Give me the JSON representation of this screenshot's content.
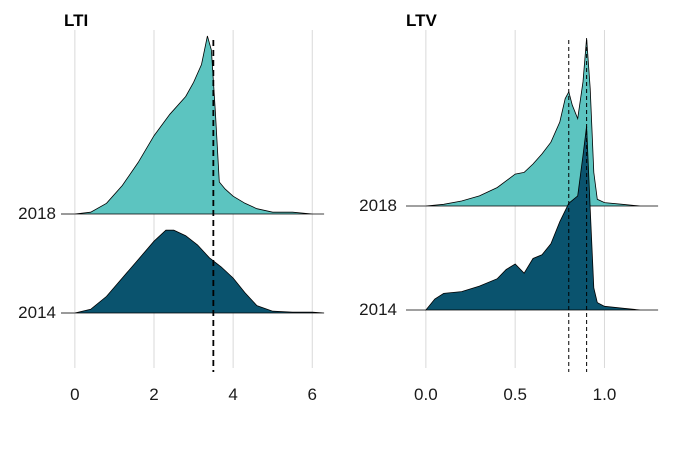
{
  "chart_data": [
    {
      "type": "ridgeline",
      "title": "LTI",
      "xlabel": "",
      "ylabel": "",
      "xlim": [
        -0.3,
        6.6
      ],
      "x_ticks": [
        "0",
        "2",
        "4",
        "6"
      ],
      "x_tick_values": [
        0,
        2,
        4,
        6
      ],
      "grid": true,
      "reference_lines": [
        {
          "x": 3.5,
          "style": "dashed"
        }
      ],
      "series": [
        {
          "name": "2018",
          "color": "#5cc4c0",
          "x": [
            0,
            0.4,
            0.8,
            1.2,
            1.6,
            2.0,
            2.4,
            2.8,
            3.0,
            3.2,
            3.35,
            3.45,
            3.55,
            3.65,
            3.8,
            4.0,
            4.3,
            4.6,
            5.0,
            5.5,
            6.0,
            6.3
          ],
          "density": [
            0.0,
            0.01,
            0.06,
            0.16,
            0.29,
            0.44,
            0.56,
            0.66,
            0.74,
            0.84,
            1.0,
            0.92,
            0.58,
            0.18,
            0.14,
            0.1,
            0.06,
            0.03,
            0.01,
            0.01,
            0.0,
            0.0
          ]
        },
        {
          "name": "2014",
          "color": "#0a536e",
          "x": [
            0,
            0.4,
            0.8,
            1.2,
            1.6,
            2.0,
            2.3,
            2.5,
            2.8,
            3.1,
            3.4,
            3.7,
            4.0,
            4.3,
            4.6,
            5.0,
            5.5,
            6.0,
            6.3
          ],
          "density": [
            0.0,
            0.04,
            0.18,
            0.38,
            0.58,
            0.78,
            0.9,
            0.9,
            0.84,
            0.74,
            0.6,
            0.5,
            0.38,
            0.22,
            0.08,
            0.02,
            0.01,
            0.01,
            0.0
          ]
        }
      ]
    },
    {
      "type": "ridgeline",
      "title": "LTV",
      "xlabel": "",
      "ylabel": "",
      "xlim": [
        -0.1,
        1.35
      ],
      "x_ticks": [
        "0.0",
        "0.5",
        "1.0"
      ],
      "x_tick_values": [
        0,
        0.5,
        1.0
      ],
      "grid": true,
      "reference_lines": [
        {
          "x": 0.8,
          "style": "dashed"
        },
        {
          "x": 0.9,
          "style": "dashed"
        }
      ],
      "series": [
        {
          "name": "2018",
          "color": "#5cc4c0",
          "x": [
            0.0,
            0.1,
            0.2,
            0.3,
            0.4,
            0.45,
            0.5,
            0.55,
            0.6,
            0.65,
            0.7,
            0.75,
            0.78,
            0.8,
            0.82,
            0.85,
            0.88,
            0.9,
            0.92,
            0.94,
            0.96,
            1.0,
            1.1,
            1.2,
            1.3
          ],
          "density": [
            0.0,
            0.01,
            0.03,
            0.06,
            0.11,
            0.15,
            0.19,
            0.2,
            0.25,
            0.31,
            0.38,
            0.5,
            0.64,
            0.68,
            0.6,
            0.52,
            0.74,
            1.0,
            0.7,
            0.2,
            0.04,
            0.02,
            0.01,
            0.0,
            0.0
          ]
        },
        {
          "name": "2014",
          "color": "#0a536e",
          "x": [
            0.0,
            0.05,
            0.1,
            0.2,
            0.3,
            0.4,
            0.45,
            0.5,
            0.55,
            0.6,
            0.65,
            0.7,
            0.75,
            0.8,
            0.85,
            0.88,
            0.9,
            0.92,
            0.94,
            0.96,
            1.0,
            1.1,
            1.2,
            1.3
          ],
          "density": [
            0.0,
            0.06,
            0.09,
            0.1,
            0.13,
            0.17,
            0.22,
            0.25,
            0.2,
            0.28,
            0.3,
            0.36,
            0.48,
            0.58,
            0.62,
            0.84,
            1.0,
            0.55,
            0.12,
            0.04,
            0.02,
            0.01,
            0.0,
            0.0
          ]
        }
      ]
    }
  ]
}
